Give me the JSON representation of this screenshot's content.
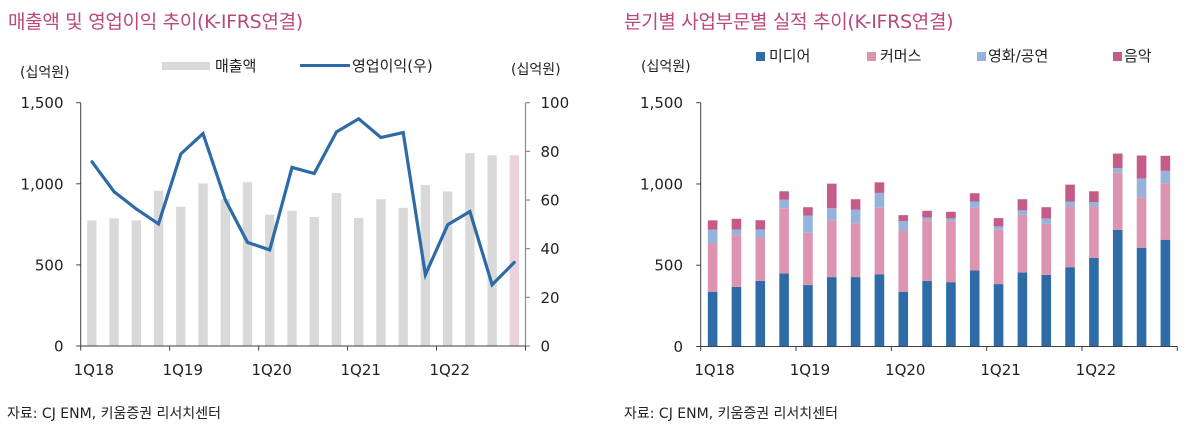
{
  "left_panel": {
    "title": "매출액 및 영업이익 추이(K-IFRS연결)",
    "unit_left": "(십억원)",
    "unit_right": "(십억원)",
    "legend": [
      {
        "label": "매출액",
        "color": "#d9d9d9",
        "shape": "bar"
      },
      {
        "label": "영업이익(우)",
        "color": "#2d6ba7",
        "shape": "line"
      }
    ],
    "source": "자료: CJ ENM, 키움증권 리서치센터"
  },
  "right_panel": {
    "title": "분기별 사업부문별 실적 추이(K-IFRS연결)",
    "unit_left": "(십억원)",
    "legend": [
      {
        "label": "미디어",
        "color": "#2e6ca8"
      },
      {
        "label": "커머스",
        "color": "#dc94b0"
      },
      {
        "label": "영화/공연",
        "color": "#95b3dc"
      },
      {
        "label": "음악",
        "color": "#c45b88"
      }
    ],
    "source": "자료: CJ ENM, 키움증권 리서치센터"
  },
  "colors": {
    "title": "#b9487b",
    "axis": "#404040",
    "secondary_axis": "#8c8c8c"
  },
  "chart_data": [
    {
      "type": "bar",
      "title": "매출액 및 영업이익 추이(K-IFRS연결)",
      "xlabel": "",
      "ylabel": "(십억원)",
      "ylabel_right": "(십억원)",
      "categories": [
        "1Q18",
        "2Q18",
        "3Q18",
        "4Q18",
        "1Q19",
        "2Q19",
        "3Q19",
        "4Q19",
        "1Q20",
        "2Q20",
        "3Q20",
        "4Q20",
        "1Q21",
        "2Q21",
        "3Q21",
        "4Q21",
        "1Q22",
        "2Q22",
        "3Q22",
        "4Q22"
      ],
      "x_tick_labels": [
        "1Q18",
        "1Q19",
        "1Q20",
        "1Q21",
        "1Q22"
      ],
      "x_tick_every": 4,
      "ylim": [
        0,
        1500
      ],
      "y_ticks": [
        0,
        500,
        1000,
        1500
      ],
      "y_tick_labels": [
        "0",
        "500",
        "1,000",
        "1,500"
      ],
      "ylim_right": [
        0,
        100
      ],
      "y_ticks_right": [
        0,
        20,
        40,
        60,
        80,
        100
      ],
      "y_tick_labels_right": [
        "0",
        "20",
        "40",
        "60",
        "80",
        "100"
      ],
      "grid": false,
      "legend": "top",
      "series": [
        {
          "name": "매출액",
          "type": "bar",
          "axis": "left",
          "color": "#d9d9d9",
          "last_bar_color": "#ead1dc",
          "values": [
            774,
            787,
            775,
            957,
            858,
            1002,
            906,
            1010,
            810,
            834,
            795,
            943,
            790,
            905,
            852,
            992,
            953,
            1189,
            1176,
            1176
          ]
        },
        {
          "name": "영업이익(우)",
          "type": "line",
          "axis": "right",
          "color": "#2d6ba7",
          "values": [
            75.8,
            63.4,
            56.3,
            50.2,
            78.9,
            87.3,
            60.1,
            42.6,
            39.5,
            73.4,
            70.9,
            88.0,
            93.4,
            85.7,
            87.7,
            29.3,
            49.8,
            55.3,
            25.2,
            34.4
          ]
        }
      ]
    },
    {
      "type": "bar",
      "stacked": true,
      "title": "분기별 사업부문별 실적 추이(K-IFRS연결)",
      "xlabel": "",
      "ylabel": "(십억원)",
      "categories": [
        "1Q18",
        "2Q18",
        "3Q18",
        "4Q18",
        "1Q19",
        "2Q19",
        "3Q19",
        "4Q19",
        "1Q20",
        "2Q20",
        "3Q20",
        "4Q20",
        "1Q21",
        "2Q21",
        "3Q21",
        "4Q21",
        "1Q22",
        "2Q22",
        "3Q22",
        "4Q22"
      ],
      "x_tick_labels": [
        "1Q18",
        "1Q19",
        "1Q20",
        "1Q21",
        "1Q22"
      ],
      "x_tick_every": 4,
      "ylim": [
        0,
        1500
      ],
      "y_ticks": [
        0,
        500,
        1000,
        1500
      ],
      "y_tick_labels": [
        "0",
        "500",
        "1,000",
        "1,500"
      ],
      "grid": false,
      "legend": "top",
      "series": [
        {
          "name": "미디어",
          "color": "#2e6ca8",
          "values": [
            337,
            367,
            404,
            449,
            378,
            427,
            427,
            443,
            337,
            404,
            396,
            469,
            384,
            455,
            441,
            488,
            545,
            718,
            606,
            657
          ]
        },
        {
          "name": "커머스",
          "color": "#dc94b0",
          "values": [
            300,
            318,
            267,
            402,
            322,
            350,
            332,
            410,
            377,
            373,
            375,
            384,
            334,
            355,
            314,
            373,
            316,
            351,
            312,
            347
          ]
        },
        {
          "name": "영화/공연",
          "color": "#95b3dc",
          "values": [
            82,
            35,
            49,
            53,
            106,
            74,
            84,
            92,
            57,
            17,
            17,
            39,
            21,
            28,
            33,
            31,
            27,
            29,
            116,
            77
          ]
        },
        {
          "name": "음악",
          "color": "#c45b88",
          "values": [
            57,
            66,
            57,
            51,
            51,
            151,
            63,
            65,
            37,
            41,
            41,
            51,
            51,
            68,
            69,
            104,
            67,
            89,
            141,
            92
          ]
        }
      ]
    }
  ]
}
